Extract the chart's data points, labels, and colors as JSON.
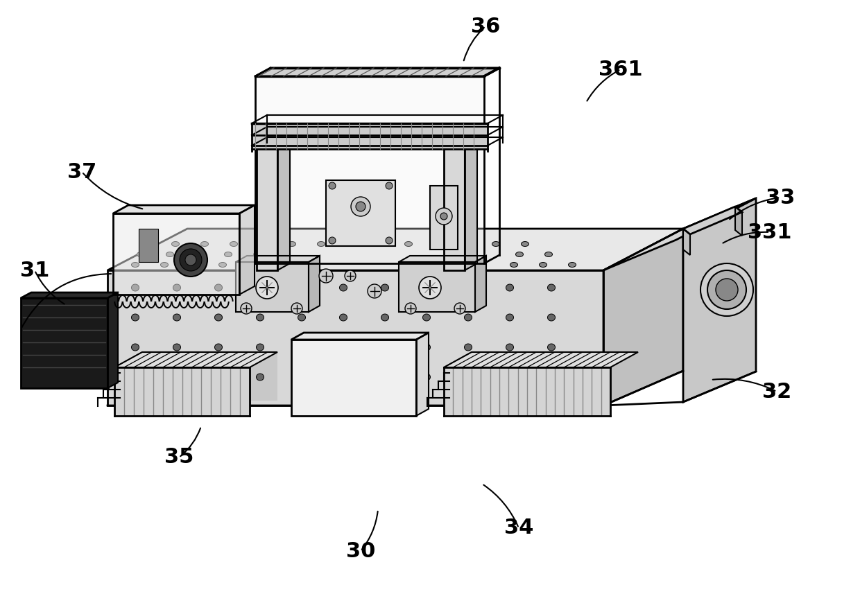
{
  "bg": "#ffffff",
  "lc": "#000000",
  "figsize": [
    12.4,
    8.57
  ],
  "dpi": 100,
  "labels_info": [
    [
      "36",
      [
        700,
        38
      ],
      [
        668,
        90
      ]
    ],
    [
      "361",
      [
        895,
        100
      ],
      [
        845,
        148
      ]
    ],
    [
      "33",
      [
        1125,
        285
      ],
      [
        1050,
        318
      ]
    ],
    [
      "331",
      [
        1110,
        335
      ],
      [
        1040,
        352
      ]
    ],
    [
      "32",
      [
        1120,
        565
      ],
      [
        1025,
        548
      ]
    ],
    [
      "37",
      [
        118,
        248
      ],
      [
        208,
        302
      ]
    ],
    [
      "31",
      [
        50,
        390
      ],
      [
        95,
        440
      ]
    ],
    [
      "35",
      [
        258,
        660
      ],
      [
        290,
        615
      ]
    ],
    [
      "34",
      [
        748,
        762
      ],
      [
        695,
        698
      ]
    ],
    [
      "30",
      [
        520,
        795
      ],
      [
        545,
        735
      ]
    ]
  ]
}
